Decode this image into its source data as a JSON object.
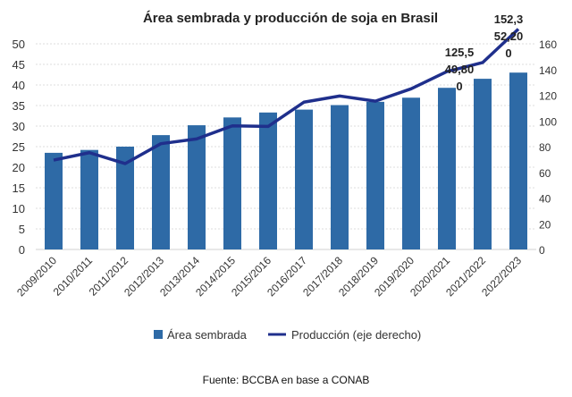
{
  "chart_data": {
    "type": "bar",
    "title": "Área sembrada y producción de soja en Brasil",
    "categories": [
      "2009/2010",
      "2010/2011",
      "2011/2012",
      "2012/2013",
      "2013/2014",
      "2014/2015",
      "2015/2016",
      "2016/2017",
      "2017/2018",
      "2018/2019",
      "2019/2020",
      "2020/2021",
      "2021/2022",
      "2022/2023"
    ],
    "series": [
      {
        "name": "Área sembrada",
        "type": "bar",
        "axis": "left",
        "color": "#2e6aa6",
        "values": [
          23.5,
          24.2,
          25.0,
          27.8,
          30.2,
          32.1,
          33.3,
          34.0,
          35.1,
          35.9,
          36.9,
          39.3,
          41.5,
          43.0
        ]
      },
      {
        "name": "Producción (eje derecho)",
        "type": "line",
        "axis": "right",
        "color": "#1f2f8c",
        "values": [
          69.5,
          75.3,
          66.8,
          82.3,
          86.0,
          96.2,
          95.7,
          114.6,
          119.4,
          115.4,
          125.0,
          138.4,
          145.4,
          171.5
        ]
      }
    ],
    "left_axis": {
      "ylim": [
        0,
        50
      ],
      "ticks": [
        "0",
        "5",
        "10",
        "15",
        "20",
        "25",
        "30",
        "35",
        "40",
        "45",
        "50"
      ]
    },
    "right_axis": {
      "ylim": [
        0,
        160
      ],
      "ticks": [
        "0",
        "20",
        "40",
        "60",
        "80",
        "100",
        "120",
        "140",
        "160"
      ]
    },
    "annotations": [
      {
        "category": "2021/2022",
        "lines": [
          "125,5",
          "49,80",
          "0"
        ]
      },
      {
        "category": "2022/2023",
        "lines": [
          "152,3",
          "52,20",
          "0"
        ]
      }
    ],
    "grid": true,
    "legend": "bottom",
    "source": "Fuente: BCCBA en base a CONAB"
  }
}
